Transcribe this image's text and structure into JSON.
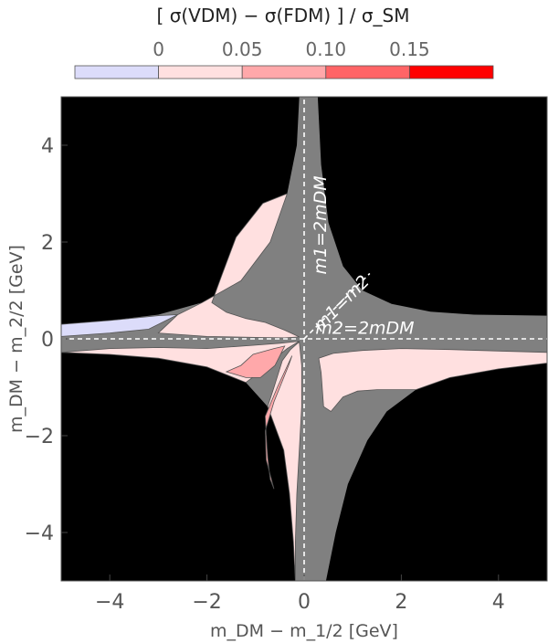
{
  "chart_data": {
    "type": "heatmap",
    "title": "",
    "xlabel": "m_DM − m_1/2 [GeV]",
    "ylabel": "m_DM − m_2/2 [GeV]",
    "xlim": [
      -5,
      5
    ],
    "ylim": [
      -5,
      5
    ],
    "xticks": [
      -4,
      -2,
      0,
      2,
      4
    ],
    "yticks": [
      -4,
      -2,
      0,
      2,
      4
    ],
    "xtick_labels": [
      "−4",
      "−2",
      "0",
      "2",
      "4"
    ],
    "ytick_labels": [
      "−4",
      "−2",
      "0",
      "2",
      "4"
    ],
    "grid": false,
    "background_color": "#000000",
    "allowed_region_color": "#808080",
    "colorbar": {
      "title": "[ σ(VDM) − σ(FDM) ] / σ_SM",
      "placement": "top",
      "tick_values": [
        0,
        0.05,
        0.1,
        0.15
      ],
      "tick_labels": [
        "0",
        "0.05",
        "0.10",
        "0.15"
      ],
      "bins": [
        {
          "range": [
            -0.05,
            0
          ],
          "color": "#dcdcfa"
        },
        {
          "range": [
            0,
            0.05
          ],
          "color": "#ffe0e0"
        },
        {
          "range": [
            0.05,
            0.1
          ],
          "color": "#ffa8aa"
        },
        {
          "range": [
            0.1,
            0.15
          ],
          "color": "#ff6466"
        },
        {
          "range": [
            0.15,
            0.2
          ],
          "color": "#ff0000"
        }
      ]
    },
    "reference_lines": [
      {
        "label": "m1=2mDM",
        "equation": "x = 0"
      },
      {
        "label": "m2=2mDM",
        "equation": "y = 0"
      },
      {
        "label": "m1=m2",
        "equation": "y = x"
      }
    ],
    "annotations": [
      {
        "label": "m1=2mDM",
        "at": [
          0.45,
          2.35
        ],
        "rotation": "vertical"
      },
      {
        "label": "m1=m2",
        "at": [
          0.85,
          0.65
        ],
        "rotation": "diagonal"
      },
      {
        "label": "m2=2mDM",
        "at": [
          1.25,
          0.1
        ],
        "rotation": "horizontal"
      }
    ],
    "gray_band": {
      "upper_right_boundary": [
        [
          0.28,
          5
        ],
        [
          0.35,
          3.6
        ],
        [
          0.5,
          2.4
        ],
        [
          0.8,
          1.5
        ],
        [
          1.2,
          1.0
        ],
        [
          1.8,
          0.72
        ],
        [
          2.6,
          0.56
        ],
        [
          3.5,
          0.5
        ],
        [
          5,
          0.48
        ]
      ],
      "upper_left_boundary": [
        [
          -0.1,
          5
        ],
        [
          -0.15,
          4.0
        ],
        [
          -0.35,
          3.0
        ],
        [
          -0.7,
          2.0
        ],
        [
          -1.3,
          1.2
        ],
        [
          -2.1,
          0.75
        ],
        [
          -3.0,
          0.5
        ],
        [
          -4.0,
          0.38
        ],
        [
          -5,
          0.3
        ]
      ],
      "lower_left_boundary": [
        [
          -5,
          -0.28
        ],
        [
          -4.0,
          -0.32
        ],
        [
          -3.0,
          -0.4
        ],
        [
          -2.0,
          -0.58
        ],
        [
          -1.2,
          -0.9
        ],
        [
          -0.75,
          -1.4
        ],
        [
          -0.42,
          -2.3
        ],
        [
          -0.3,
          -3.2
        ],
        [
          -0.22,
          -4.2
        ],
        [
          -0.18,
          -5
        ]
      ],
      "lower_right_boundary": [
        [
          0.45,
          -5
        ],
        [
          0.65,
          -4.0
        ],
        [
          0.9,
          -3.0
        ],
        [
          1.3,
          -2.1
        ],
        [
          1.7,
          -1.5
        ],
        [
          2.3,
          -1.05
        ],
        [
          3.0,
          -0.8
        ],
        [
          4.0,
          -0.62
        ],
        [
          5,
          -0.5
        ]
      ]
    },
    "regions": [
      {
        "bin": 0,
        "points": [
          [
            -5,
            0.05
          ],
          [
            -5,
            0.3
          ],
          [
            -4.0,
            0.38
          ],
          [
            -3.0,
            0.48
          ],
          [
            -2.6,
            0.5
          ],
          [
            -3.2,
            0.2
          ],
          [
            -4.0,
            0.12
          ]
        ]
      },
      {
        "bin": 1,
        "points": [
          [
            -2.6,
            0.5
          ],
          [
            -2.1,
            0.75
          ],
          [
            -1.3,
            1.2
          ],
          [
            -0.7,
            2.0
          ],
          [
            -0.35,
            3.0
          ],
          [
            -0.85,
            2.8
          ],
          [
            -1.4,
            2.1
          ],
          [
            -1.7,
            1.3
          ],
          [
            -1.9,
            0.75
          ],
          [
            -1.6,
            0.55
          ],
          [
            -1.2,
            0.42
          ],
          [
            -0.8,
            0.34
          ],
          [
            -0.4,
            0.18
          ],
          [
            -0.1,
            0.04
          ],
          [
            -0.4,
            0.02
          ],
          [
            -1.0,
            0.03
          ],
          [
            -2.0,
            0.05
          ],
          [
            -3.0,
            0.12
          ]
        ]
      },
      {
        "bin": 1,
        "points": [
          [
            -5,
            -0.28
          ],
          [
            -4.0,
            -0.32
          ],
          [
            -3.0,
            -0.4
          ],
          [
            -2.0,
            -0.58
          ],
          [
            -1.2,
            -0.9
          ],
          [
            -1.0,
            -0.75
          ],
          [
            -0.62,
            -0.42
          ],
          [
            -0.35,
            -0.2
          ],
          [
            -0.1,
            -0.05
          ],
          [
            -0.5,
            -0.09
          ],
          [
            -1.0,
            -0.13
          ],
          [
            -2.0,
            -0.2
          ],
          [
            -3.0,
            -0.18
          ],
          [
            -4.0,
            -0.2
          ]
        ]
      },
      {
        "bin": 2,
        "points": [
          [
            -1.6,
            -0.68
          ],
          [
            -1.3,
            -0.55
          ],
          [
            -1.05,
            -0.32
          ],
          [
            -0.62,
            -0.2
          ],
          [
            -0.4,
            -0.15
          ],
          [
            -0.6,
            -0.55
          ],
          [
            -0.9,
            -0.8
          ],
          [
            -1.2,
            -0.8
          ]
        ]
      },
      {
        "bin": 1,
        "points": [
          [
            -0.45,
            -0.45
          ],
          [
            -0.28,
            -0.22
          ],
          [
            -0.1,
            -0.06
          ],
          [
            -0.05,
            -0.55
          ],
          [
            -0.05,
            -1.4
          ],
          [
            -0.1,
            -2.3
          ],
          [
            -0.15,
            -3.2
          ],
          [
            -0.18,
            -4.2
          ],
          [
            -0.18,
            -5
          ],
          [
            -0.22,
            -4.2
          ],
          [
            -0.3,
            -3.2
          ],
          [
            -0.42,
            -2.3
          ],
          [
            -0.75,
            -1.4
          ],
          [
            -0.62,
            -1.0
          ]
        ]
      },
      {
        "bin": 2,
        "points": [
          [
            -0.32,
            -0.55
          ],
          [
            -0.25,
            -0.35
          ],
          [
            -0.55,
            -1.0
          ],
          [
            -0.8,
            -1.6
          ],
          [
            -0.78,
            -2.0
          ],
          [
            -0.75,
            -2.45
          ],
          [
            -0.7,
            -2.9
          ],
          [
            -0.62,
            -3.1
          ],
          [
            -0.78,
            -2.5
          ],
          [
            -0.8,
            -1.9
          ],
          [
            -0.62,
            -1.3
          ]
        ]
      },
      {
        "bin": 1,
        "points": [
          [
            0.35,
            -0.7
          ],
          [
            0.3,
            -0.4
          ],
          [
            0.6,
            -0.3
          ],
          [
            1.2,
            -0.24
          ],
          [
            2.0,
            -0.2
          ],
          [
            3.0,
            -0.22
          ],
          [
            4.0,
            -0.25
          ],
          [
            5,
            -0.28
          ],
          [
            5,
            -0.5
          ],
          [
            4.0,
            -0.62
          ],
          [
            3.0,
            -0.8
          ],
          [
            2.3,
            -1.05
          ],
          [
            1.5,
            -1.05
          ],
          [
            1.1,
            -1.08
          ],
          [
            0.8,
            -1.2
          ],
          [
            0.55,
            -1.5
          ],
          [
            0.4,
            -1.4
          ]
        ]
      }
    ]
  }
}
